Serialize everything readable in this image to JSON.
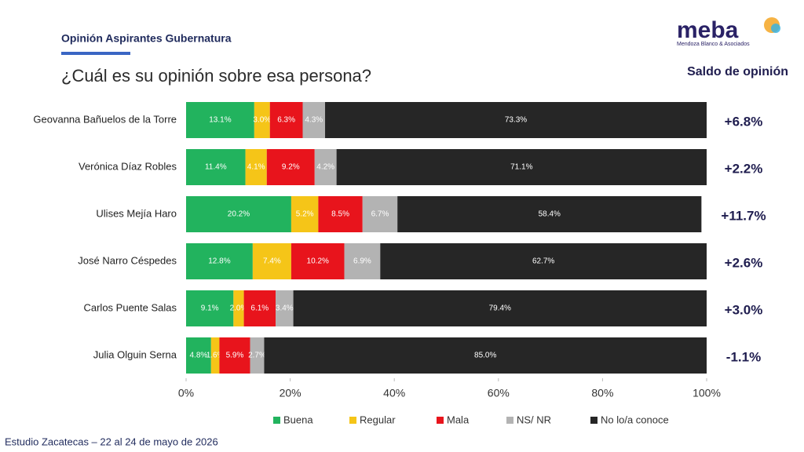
{
  "header": "Opinión Aspirantes Gubernatura",
  "logo": {
    "name": "meba",
    "subtitle": "Mendoza Blanco & Asociados"
  },
  "footer": "Estudio Zacatecas – 22 al 24 de mayo de 2026",
  "chart_data": {
    "type": "stacked-bar-horizontal",
    "title": "¿Cuál es su opinión sobre esa persona?",
    "categories": [
      "Geovanna Bañuelos de la Torre",
      "Verónica Díaz Robles",
      "Ulises Mejía Haro",
      "José Narro Céspedes",
      "Carlos Puente Salas",
      "Julia Olguin Serna"
    ],
    "series": [
      {
        "name": "Buena",
        "color": "#22b35e",
        "values": [
          13.1,
          11.4,
          20.2,
          12.8,
          9.1,
          4.8
        ],
        "value_labels": [
          "13.1%",
          "11.4%",
          "20.2%",
          "12.8%",
          "9.1%",
          "4.8%"
        ]
      },
      {
        "name": "Regular",
        "color": "#f5c518",
        "values": [
          3.0,
          4.1,
          5.2,
          7.4,
          2.0,
          1.6
        ],
        "value_labels": [
          "3.0%",
          "4.1%",
          "5.2%",
          "7.4%",
          "2.0%",
          "1.6%"
        ]
      },
      {
        "name": "Mala",
        "color": "#e8141c",
        "values": [
          6.3,
          9.2,
          8.5,
          10.2,
          6.1,
          5.9
        ],
        "value_labels": [
          "6.3%",
          "9.2%",
          "8.5%",
          "10.2%",
          "6.1%",
          "5.9%"
        ]
      },
      {
        "name": "NS/ NR",
        "color": "#b3b3b3",
        "values": [
          4.3,
          4.2,
          6.7,
          6.9,
          3.4,
          2.7
        ],
        "value_labels": [
          "4.3%",
          "4.2%",
          "6.7%",
          "6.9%",
          "3.4%",
          "2.7%"
        ]
      },
      {
        "name": "No lo/a conoce",
        "color": "#262626",
        "values": [
          73.3,
          71.1,
          58.4,
          62.7,
          79.4,
          85.0
        ],
        "value_labels": [
          "73.3%",
          "71.1%",
          "58.4%",
          "62.7%",
          "79.4%",
          "85.0%"
        ]
      }
    ],
    "xlim": [
      0,
      100
    ],
    "xticks": [
      {
        "value": 0,
        "label": "0%"
      },
      {
        "value": 20,
        "label": "20%"
      },
      {
        "value": 40,
        "label": "40%"
      },
      {
        "value": 60,
        "label": "60%"
      },
      {
        "value": 80,
        "label": "80%"
      },
      {
        "value": 100,
        "label": "100%"
      }
    ],
    "saldo_title": "Saldo de opinión",
    "saldo": [
      "+6.8%",
      "+2.2%",
      "+11.7%",
      "+2.6%",
      "+3.0%",
      "-1.1%"
    ],
    "legend": "bottom"
  }
}
